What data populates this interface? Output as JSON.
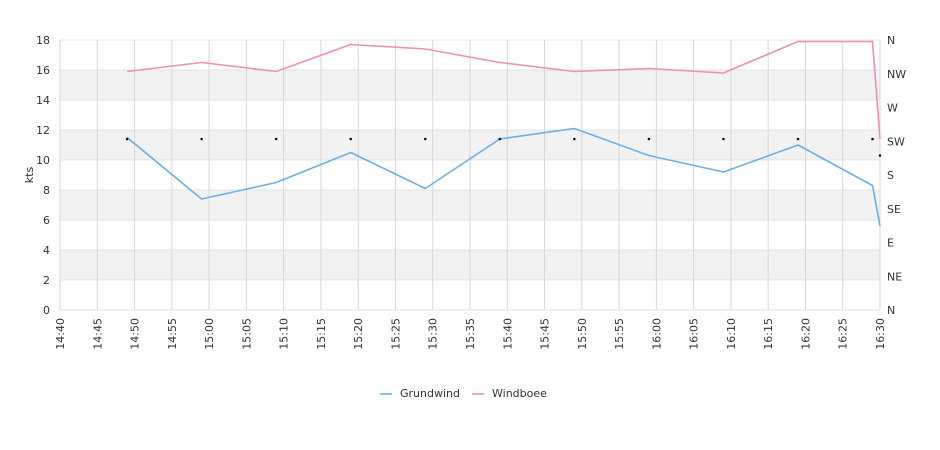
{
  "chart_data": {
    "type": "line",
    "ylabel": "kts",
    "ylim": [
      0,
      18
    ],
    "yticks": [
      "0",
      "2",
      "4",
      "6",
      "8",
      "10",
      "12",
      "14",
      "16",
      "18"
    ],
    "x_ticks": [
      "14:40",
      "14:45",
      "14:50",
      "14:55",
      "15:00",
      "15:05",
      "15:10",
      "15:15",
      "15:20",
      "15:25",
      "15:30",
      "15:35",
      "15:40",
      "15:45",
      "15:50",
      "15:55",
      "16:00",
      "16:05",
      "16:10",
      "16:15",
      "16:20",
      "16:25",
      "16:30"
    ],
    "x_range_minutes": [
      880,
      990
    ],
    "right_axis_labels": [
      "N",
      "NE",
      "E",
      "SE",
      "S",
      "SW",
      "W",
      "NW",
      "N"
    ],
    "grid": true,
    "legend_position": "bottom",
    "series": [
      {
        "name": "Grundwind",
        "color": "#6caee6",
        "x": [
          "14:49",
          "14:59",
          "15:09",
          "15:19",
          "15:29",
          "15:39",
          "15:49",
          "15:59",
          "16:09",
          "16:19",
          "16:29",
          "16:30"
        ],
        "values": [
          11.5,
          7.4,
          8.5,
          10.5,
          8.1,
          11.4,
          12.1,
          10.3,
          9.2,
          11.0,
          8.3,
          5.6
        ]
      },
      {
        "name": "Windboee",
        "color": "#ef8fb6",
        "x": [
          "14:49",
          "14:59",
          "15:09",
          "15:19",
          "15:29",
          "15:39",
          "15:49",
          "15:59",
          "16:09",
          "16:19",
          "16:29",
          "16:30"
        ],
        "values": [
          15.9,
          16.5,
          15.9,
          17.7,
          17.4,
          16.5,
          15.9,
          16.1,
          15.8,
          17.9,
          17.9,
          11.4
        ]
      }
    ],
    "direction_markers": {
      "x": [
        "14:49",
        "14:59",
        "15:09",
        "15:19",
        "15:29",
        "15:39",
        "15:49",
        "15:59",
        "16:09",
        "16:19",
        "16:29",
        "16:30"
      ],
      "values": [
        11.4,
        11.4,
        11.4,
        11.4,
        11.4,
        11.4,
        11.4,
        11.4,
        11.4,
        11.4,
        11.4,
        10.3
      ]
    }
  }
}
